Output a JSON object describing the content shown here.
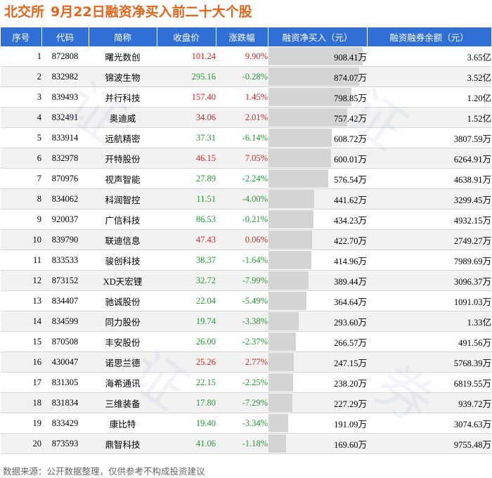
{
  "title": {
    "exchange": "北交所",
    "text": "9月22日融资净买入前二十大个股"
  },
  "colors": {
    "header_bg": "#2f6fd6",
    "title": "#e8641b",
    "up": "#e02020",
    "down": "#1c9e2c",
    "bar": "#d4d4d4"
  },
  "headers": [
    "序号",
    "代码",
    "简称",
    "收盘价",
    "涨跌幅",
    "融资净买入（元）",
    "融资融券余额（元）"
  ],
  "footer": "数据来源：公开数据整理，仅供参考不构成投资建议",
  "chart_data": {
    "type": "table",
    "columns": [
      "序号",
      "代码",
      "简称",
      "收盘价",
      "涨跌幅",
      "融资净买入（元）",
      "融资融券余额（元）"
    ],
    "net_buy_unit": "万",
    "rows": [
      {
        "rank": "1",
        "code": "872808",
        "name": "曙光数创",
        "close": "101.24",
        "pct": "9.90%",
        "net": "908.41万",
        "net_value": 908.41,
        "balance": "3.65亿"
      },
      {
        "rank": "2",
        "code": "832982",
        "name": "锦波生物",
        "close": "295.16",
        "pct": "-0.28%",
        "net": "874.07万",
        "net_value": 874.07,
        "balance": "3.52亿"
      },
      {
        "rank": "3",
        "code": "839493",
        "name": "并行科技",
        "close": "157.40",
        "pct": "1.45%",
        "net": "798.85万",
        "net_value": 798.85,
        "balance": "1.20亿"
      },
      {
        "rank": "4",
        "code": "832491",
        "name": "奥迪威",
        "close": "34.06",
        "pct": "2.01%",
        "net": "757.42万",
        "net_value": 757.42,
        "balance": "1.52亿"
      },
      {
        "rank": "5",
        "code": "833914",
        "name": "远航精密",
        "close": "37.31",
        "pct": "-6.14%",
        "net": "608.72万",
        "net_value": 608.72,
        "balance": "3807.59万"
      },
      {
        "rank": "6",
        "code": "832978",
        "name": "开特股份",
        "close": "46.15",
        "pct": "7.05%",
        "net": "600.01万",
        "net_value": 600.01,
        "balance": "6264.91万"
      },
      {
        "rank": "7",
        "code": "870976",
        "name": "视声智能",
        "close": "27.89",
        "pct": "-2.24%",
        "net": "576.54万",
        "net_value": 576.54,
        "balance": "4638.91万"
      },
      {
        "rank": "8",
        "code": "834062",
        "name": "科润智控",
        "close": "11.51",
        "pct": "-4.00%",
        "net": "441.62万",
        "net_value": 441.62,
        "balance": "3299.45万"
      },
      {
        "rank": "9",
        "code": "920037",
        "name": "广信科技",
        "close": "86.53",
        "pct": "-0.21%",
        "net": "434.23万",
        "net_value": 434.23,
        "balance": "4932.15万"
      },
      {
        "rank": "10",
        "code": "839790",
        "name": "联迪信息",
        "close": "47.43",
        "pct": "0.06%",
        "net": "422.70万",
        "net_value": 422.7,
        "balance": "2749.27万"
      },
      {
        "rank": "11",
        "code": "833533",
        "name": "骏创科技",
        "close": "38.37",
        "pct": "-1.64%",
        "net": "414.96万",
        "net_value": 414.96,
        "balance": "7989.69万"
      },
      {
        "rank": "12",
        "code": "873152",
        "name": "XD天宏锂",
        "close": "32.72",
        "pct": "-7.99%",
        "net": "389.44万",
        "net_value": 389.44,
        "balance": "3096.37万"
      },
      {
        "rank": "13",
        "code": "834407",
        "name": "驰诚股份",
        "close": "22.04",
        "pct": "-5.49%",
        "net": "364.64万",
        "net_value": 364.64,
        "balance": "1091.03万"
      },
      {
        "rank": "14",
        "code": "834599",
        "name": "同力股份",
        "close": "19.74",
        "pct": "-3.38%",
        "net": "293.60万",
        "net_value": 293.6,
        "balance": "1.33亿"
      },
      {
        "rank": "15",
        "code": "870508",
        "name": "丰安股份",
        "close": "26.00",
        "pct": "-2.37%",
        "net": "266.57万",
        "net_value": 266.57,
        "balance": "491.56万"
      },
      {
        "rank": "16",
        "code": "430047",
        "name": "诺思兰德",
        "close": "25.26",
        "pct": "2.77%",
        "net": "247.15万",
        "net_value": 247.15,
        "balance": "5768.39万"
      },
      {
        "rank": "17",
        "code": "831305",
        "name": "海希通讯",
        "close": "22.15",
        "pct": "-2.25%",
        "net": "238.20万",
        "net_value": 238.2,
        "balance": "6819.55万"
      },
      {
        "rank": "18",
        "code": "831834",
        "name": "三维装备",
        "close": "17.80",
        "pct": "-7.29%",
        "net": "227.29万",
        "net_value": 227.29,
        "balance": "939.72万"
      },
      {
        "rank": "19",
        "code": "833429",
        "name": "康比特",
        "close": "19.40",
        "pct": "-3.34%",
        "net": "191.09万",
        "net_value": 191.09,
        "balance": "3074.63万"
      },
      {
        "rank": "20",
        "code": "873593",
        "name": "鼎智科技",
        "close": "41.06",
        "pct": "-1.18%",
        "net": "169.60万",
        "net_value": 169.6,
        "balance": "9755.48万"
      }
    ]
  }
}
